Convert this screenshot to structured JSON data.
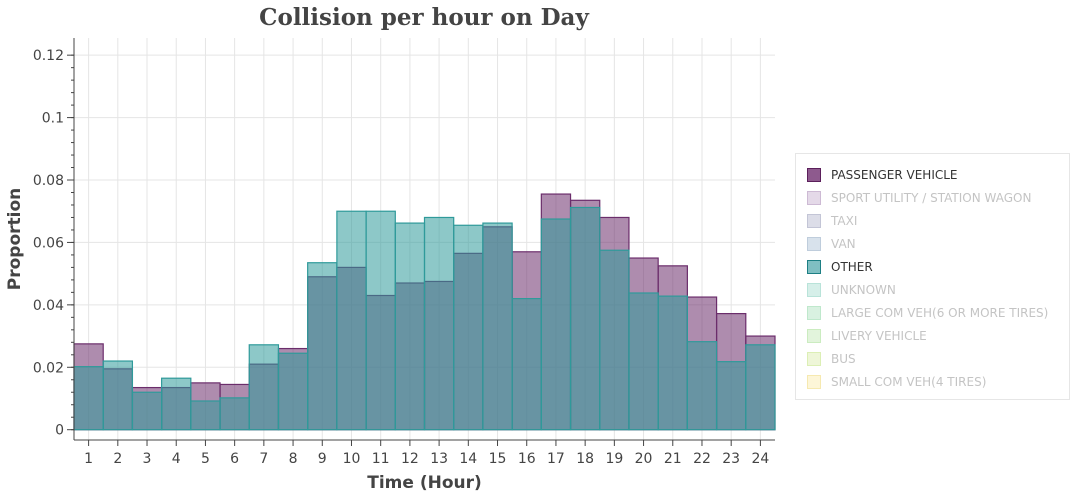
{
  "chart_data": {
    "type": "bar",
    "title": "Collision per hour on Day",
    "xlabel": "Time (Hour)",
    "ylabel": "Proportion",
    "ylim": [
      -0.0033,
      0.1255
    ],
    "xlim": [
      0.5,
      24.5
    ],
    "grid": true,
    "legend_position": "right",
    "categories": [
      1,
      2,
      3,
      4,
      5,
      6,
      7,
      8,
      9,
      10,
      11,
      12,
      13,
      14,
      15,
      16,
      17,
      18,
      19,
      20,
      21,
      22,
      23,
      24
    ],
    "yticks": [
      "0",
      "0.02",
      "0.04",
      "0.06",
      "0.08",
      "0.1",
      "0.12"
    ],
    "ytick_values": [
      0,
      0.02,
      0.04,
      0.06,
      0.08,
      0.1,
      0.12
    ],
    "series": [
      {
        "name": "PASSENGER VEHICLE",
        "color": "#6b2d6b",
        "values": [
          0.0275,
          0.0195,
          0.0135,
          0.0135,
          0.015,
          0.0145,
          0.021,
          0.026,
          0.049,
          0.052,
          0.043,
          0.047,
          0.0475,
          0.0565,
          0.065,
          0.057,
          0.0755,
          0.0735,
          0.068,
          0.055,
          0.0525,
          0.0425,
          0.0372,
          0.03
        ]
      },
      {
        "name": "OTHER",
        "color": "#2f9a9a",
        "values": [
          0.0202,
          0.022,
          0.012,
          0.0165,
          0.0092,
          0.0102,
          0.0272,
          0.0245,
          0.0535,
          0.07,
          0.07,
          0.0662,
          0.068,
          0.0655,
          0.0662,
          0.042,
          0.0675,
          0.0712,
          0.0575,
          0.0438,
          0.0428,
          0.0282,
          0.0218,
          0.0272
        ]
      }
    ],
    "legend": [
      {
        "label": "PASSENGER VEHICLE",
        "color": "#8e5a8e",
        "border": "#5b1f5b",
        "active": true
      },
      {
        "label": "SPORT UTILITY / STATION WAGON",
        "color": "#e4d9e8",
        "border": "#cdbad4",
        "active": false
      },
      {
        "label": "TAXI",
        "color": "#dcdde8",
        "border": "#c3c5d6",
        "active": false
      },
      {
        "label": "VAN",
        "color": "#d8e2ec",
        "border": "#bfcddc",
        "active": false
      },
      {
        "label": "OTHER",
        "color": "#7fbfc2",
        "border": "#1d7f84",
        "active": true
      },
      {
        "label": "UNKNOWN",
        "color": "#d6efe9",
        "border": "#b9e3d9",
        "active": false
      },
      {
        "label": "LARGE COM VEH(6 OR MORE TIRES)",
        "color": "#d9f1e1",
        "border": "#bfe8cc",
        "active": false
      },
      {
        "label": "LIVERY VEHICLE",
        "color": "#e2f4dc",
        "border": "#cbecc0",
        "active": false
      },
      {
        "label": "BUS",
        "color": "#eef6d8",
        "border": "#dcefb5",
        "active": false
      },
      {
        "label": "SMALL COM VEH(4 TIRES)",
        "color": "#fdf6d8",
        "border": "#f6e9b0",
        "active": false
      }
    ]
  }
}
